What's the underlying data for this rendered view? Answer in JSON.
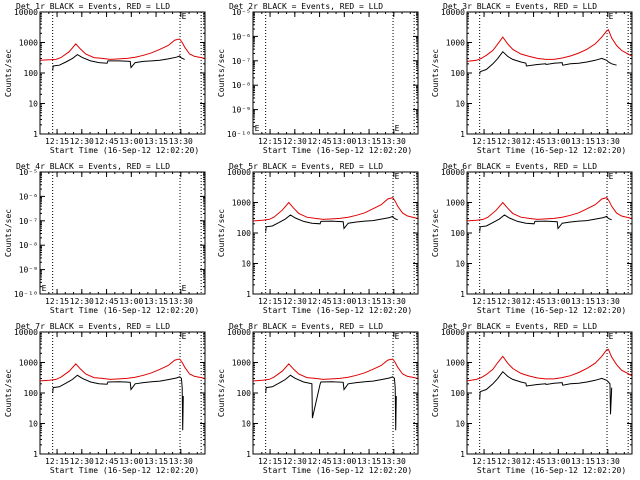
{
  "chart_data": {
    "type": "line",
    "x_ticks": [
      "12:15",
      "12:30",
      "12:45",
      "13:00",
      "13:15",
      "13:30"
    ],
    "xlabel": "Start Time (16-Sep-12 12:02:20)",
    "ylabel": "Counts/sec",
    "xlim_minutes": [
      2.33,
      102.33
    ],
    "vertical_markers_minutes": [
      10,
      87.2,
      100
    ],
    "series_colors": {
      "events": "#000000",
      "lld": "#e00000"
    },
    "panels": [
      {
        "title": "Det 1r BLACK = Events, RED = LLD",
        "has_data": true,
        "ylim": [
          1,
          10000
        ],
        "y_ticks": [
          "1",
          "10",
          "100",
          "1000",
          "10000"
        ],
        "y_tick_values": [
          1,
          10,
          100,
          1000,
          10000
        ],
        "marker_label": "E",
        "lld": {
          "x": [
            2.5,
            8,
            12,
            15,
            20,
            24,
            27,
            30,
            35,
            40,
            45,
            50,
            55,
            60,
            65,
            70,
            75,
            80,
            84,
            87,
            88.5,
            90,
            93,
            96,
            100,
            102
          ],
          "y": [
            260,
            270,
            280,
            320,
            500,
            900,
            600,
            420,
            320,
            300,
            280,
            290,
            300,
            330,
            380,
            460,
            600,
            800,
            1200,
            1300,
            1000,
            700,
            420,
            350,
            320,
            300
          ]
        },
        "events": {
          "x": [
            10,
            10.3,
            14,
            18,
            22,
            25,
            28,
            33,
            38,
            43,
            43.5,
            50,
            57,
            57.5,
            60,
            65,
            70,
            75,
            80,
            85,
            87,
            88,
            90
          ],
          "y": [
            120,
            170,
            180,
            230,
            300,
            400,
            320,
            250,
            220,
            210,
            250,
            250,
            240,
            150,
            220,
            240,
            250,
            260,
            290,
            330,
            360,
            310,
            280
          ]
        }
      },
      {
        "title": "Det 2r BLACK = Events, RED = LLD",
        "has_data": false,
        "ylim": [
          1e-10,
          1e-05
        ],
        "y_ticks": [
          "10⁻⁵",
          "10⁻⁶",
          "10⁻⁷",
          "10⁻⁸",
          "10⁻⁹",
          "10⁻¹⁰"
        ],
        "y_tick_values": [
          1e-05,
          1e-06,
          1e-07,
          1e-08,
          1e-09,
          1e-10
        ],
        "marker_label": "E",
        "lld": {
          "x": [],
          "y": []
        },
        "events": {
          "x": [],
          "y": []
        }
      },
      {
        "title": "Det 3r BLACK = Events, RED = LLD",
        "has_data": true,
        "ylim": [
          1,
          10000
        ],
        "y_ticks": [
          "1",
          "10",
          "100",
          "1000",
          "10000"
        ],
        "y_tick_values": [
          1,
          10,
          100,
          1000,
          10000
        ],
        "marker_label": "E",
        "lld": {
          "x": [
            2.5,
            8,
            11,
            14,
            18,
            21,
            24,
            27,
            30,
            35,
            40,
            45,
            50,
            55,
            60,
            65,
            70,
            75,
            80,
            84,
            87,
            88,
            90,
            93,
            96,
            100,
            102
          ],
          "y": [
            240,
            260,
            300,
            380,
            550,
            900,
            1500,
            900,
            600,
            420,
            350,
            300,
            280,
            280,
            310,
            360,
            450,
            600,
            900,
            1500,
            2400,
            2600,
            1400,
            800,
            550,
            420,
            360
          ]
        },
        "events": {
          "x": [
            10,
            10.3,
            14,
            18,
            21,
            24,
            27,
            30,
            35,
            38,
            38.3,
            45,
            50,
            50.3,
            55,
            60,
            60.3,
            65,
            70,
            75,
            80,
            84,
            87,
            88,
            90,
            93
          ],
          "y": [
            90,
            110,
            130,
            200,
            300,
            500,
            350,
            280,
            230,
            210,
            170,
            190,
            200,
            190,
            210,
            220,
            180,
            200,
            210,
            230,
            260,
            300,
            260,
            230,
            200,
            180
          ]
        }
      },
      {
        "title": "Det 4r BLACK = Events, RED = LLD",
        "has_data": false,
        "ylim": [
          1e-10,
          1e-05
        ],
        "y_ticks": [
          "10⁻⁵",
          "10⁻⁶",
          "10⁻⁷",
          "10⁻⁸",
          "10⁻⁹",
          "10⁻¹⁰"
        ],
        "y_tick_values": [
          1e-05,
          1e-06,
          1e-07,
          1e-08,
          1e-09,
          1e-10
        ],
        "marker_label": "E",
        "lld": {
          "x": [],
          "y": []
        },
        "events": {
          "x": [],
          "y": []
        }
      },
      {
        "title": "Det 5r BLACK = Events, RED = LLD",
        "has_data": true,
        "ylim": [
          1,
          10000
        ],
        "y_ticks": [
          "1",
          "10",
          "100",
          "1000",
          "10000"
        ],
        "y_tick_values": [
          1,
          10,
          100,
          1000,
          10000
        ],
        "marker_label": "E",
        "lld": {
          "x": [
            2.5,
            8,
            12,
            15,
            20,
            24,
            27,
            30,
            35,
            40,
            45,
            50,
            55,
            60,
            65,
            70,
            75,
            80,
            84,
            87,
            88.5,
            90,
            93,
            96,
            100,
            102
          ],
          "y": [
            250,
            260,
            280,
            330,
            560,
            1000,
            650,
            440,
            330,
            300,
            280,
            290,
            300,
            330,
            380,
            460,
            620,
            850,
            1300,
            1450,
            1100,
            750,
            450,
            360,
            320,
            300
          ]
        },
        "events": {
          "x": [
            10,
            10.3,
            14,
            18,
            22,
            25,
            28,
            33,
            38,
            43,
            43.5,
            50,
            57,
            57.5,
            60,
            65,
            70,
            75,
            80,
            85,
            87,
            88,
            90
          ],
          "y": [
            110,
            160,
            170,
            220,
            290,
            390,
            310,
            240,
            210,
            200,
            240,
            245,
            235,
            140,
            210,
            230,
            245,
            255,
            285,
            320,
            350,
            300,
            270
          ]
        }
      },
      {
        "title": "Det 6r BLACK = Events, RED = LLD",
        "has_data": true,
        "ylim": [
          1,
          10000
        ],
        "y_ticks": [
          "1",
          "10",
          "100",
          "1000",
          "10000"
        ],
        "y_tick_values": [
          1,
          10,
          100,
          1000,
          10000
        ],
        "marker_label": "E",
        "lld": {
          "x": [
            2.5,
            8,
            12,
            15,
            20,
            24,
            27,
            30,
            35,
            40,
            45,
            50,
            55,
            60,
            65,
            70,
            75,
            80,
            84,
            87,
            88.5,
            90,
            93,
            96,
            100,
            102
          ],
          "y": [
            250,
            260,
            280,
            330,
            560,
            1000,
            650,
            440,
            330,
            300,
            280,
            290,
            300,
            330,
            380,
            460,
            620,
            850,
            1300,
            1450,
            1100,
            750,
            450,
            360,
            320,
            300
          ]
        },
        "events": {
          "x": [
            10,
            10.3,
            14,
            18,
            22,
            25,
            28,
            33,
            38,
            43,
            43.5,
            50,
            57,
            57.5,
            60,
            65,
            70,
            75,
            80,
            85,
            87,
            88,
            90
          ],
          "y": [
            110,
            160,
            170,
            220,
            290,
            390,
            310,
            240,
            210,
            200,
            240,
            245,
            235,
            140,
            210,
            230,
            245,
            255,
            285,
            320,
            350,
            300,
            270
          ]
        }
      },
      {
        "title": "Det 7r BLACK = Events, RED = LLD",
        "has_data": true,
        "ylim": [
          1,
          10000
        ],
        "y_ticks": [
          "1",
          "10",
          "100",
          "1000",
          "10000"
        ],
        "y_tick_values": [
          1,
          10,
          100,
          1000,
          10000
        ],
        "marker_label": "E",
        "lld": {
          "x": [
            2.5,
            8,
            12,
            15,
            20,
            24,
            27,
            30,
            35,
            40,
            45,
            50,
            55,
            60,
            65,
            70,
            75,
            80,
            84,
            87,
            88.5,
            90,
            93,
            96,
            100,
            102
          ],
          "y": [
            250,
            260,
            280,
            330,
            520,
            900,
            600,
            420,
            320,
            300,
            280,
            290,
            300,
            330,
            380,
            460,
            600,
            800,
            1200,
            1300,
            1000,
            700,
            420,
            350,
            320,
            300
          ]
        },
        "events": {
          "x": [
            10,
            10.3,
            14,
            18,
            22,
            25,
            28,
            33,
            38,
            43,
            43.5,
            50,
            57,
            57.5,
            60,
            65,
            70,
            75,
            80,
            85,
            87,
            88,
            88.5,
            88.8,
            89.2
          ],
          "y": [
            100,
            150,
            160,
            210,
            280,
            380,
            300,
            230,
            200,
            195,
            230,
            235,
            225,
            130,
            200,
            220,
            235,
            245,
            275,
            310,
            340,
            300,
            150,
            6,
            80
          ]
        }
      },
      {
        "title": "Det 8r BLACK = Events, RED = LLD",
        "has_data": true,
        "ylim": [
          1,
          10000
        ],
        "y_ticks": [
          "1",
          "10",
          "100",
          "1000",
          "10000"
        ],
        "y_tick_values": [
          1,
          10,
          100,
          1000,
          10000
        ],
        "marker_label": "E",
        "lld": {
          "x": [
            2.5,
            8,
            12,
            15,
            20,
            24,
            27,
            30,
            35,
            40,
            45,
            50,
            55,
            60,
            65,
            70,
            75,
            80,
            84,
            87,
            88.5,
            90,
            93,
            96,
            100,
            102
          ],
          "y": [
            250,
            260,
            280,
            330,
            520,
            900,
            600,
            420,
            320,
            300,
            280,
            290,
            300,
            330,
            380,
            460,
            600,
            800,
            1200,
            1300,
            1000,
            700,
            420,
            350,
            320,
            300
          ]
        },
        "events": {
          "x": [
            10,
            10.3,
            14,
            18,
            22,
            25,
            28,
            33,
            38,
            38.3,
            43,
            43.5,
            50,
            57,
            57.5,
            60,
            65,
            70,
            75,
            80,
            85,
            87,
            88,
            88.5,
            88.8,
            89.2
          ],
          "y": [
            100,
            150,
            160,
            210,
            280,
            380,
            300,
            230,
            200,
            15,
            195,
            230,
            235,
            225,
            130,
            200,
            220,
            235,
            245,
            275,
            310,
            340,
            300,
            150,
            6,
            80
          ]
        }
      },
      {
        "title": "Det 9r BLACK = Events, RED = LLD",
        "has_data": true,
        "ylim": [
          1,
          10000
        ],
        "y_ticks": [
          "1",
          "10",
          "100",
          "1000",
          "10000"
        ],
        "y_tick_values": [
          1,
          10,
          100,
          1000,
          10000
        ],
        "marker_label": "E",
        "lld": {
          "x": [
            2.5,
            8,
            11,
            14,
            18,
            21,
            24,
            27,
            30,
            35,
            40,
            45,
            50,
            55,
            60,
            65,
            70,
            75,
            80,
            84,
            87,
            88,
            90,
            93,
            96,
            100,
            102
          ],
          "y": [
            250,
            280,
            320,
            400,
            600,
            1000,
            1600,
            950,
            640,
            440,
            360,
            310,
            290,
            290,
            320,
            370,
            470,
            640,
            950,
            1600,
            2600,
            2700,
            1500,
            850,
            560,
            430,
            370
          ]
        },
        "events": {
          "x": [
            10,
            10.3,
            14,
            18,
            21,
            24,
            27,
            30,
            35,
            38,
            38.3,
            45,
            50,
            50.3,
            55,
            60,
            60.3,
            65,
            70,
            75,
            80,
            84,
            87,
            88,
            89,
            89.3,
            90
          ],
          "y": [
            60,
            110,
            130,
            200,
            300,
            500,
            350,
            280,
            230,
            210,
            170,
            190,
            200,
            190,
            210,
            220,
            180,
            200,
            210,
            230,
            260,
            300,
            260,
            230,
            200,
            20,
            150
          ]
        }
      }
    ]
  }
}
